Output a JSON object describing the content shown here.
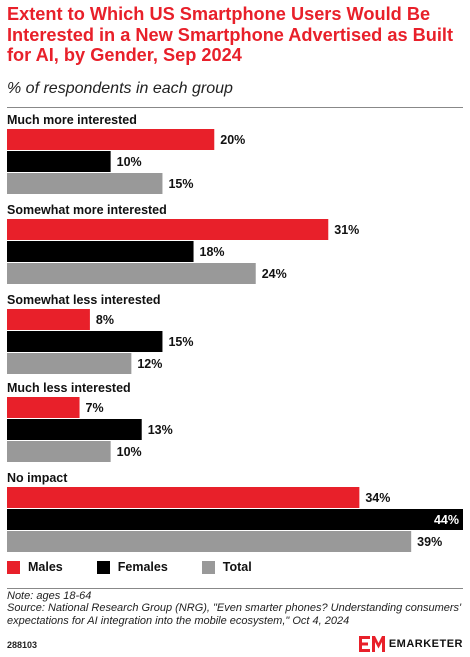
{
  "header": {
    "title": "Extent to Which US Smartphone Users Would Be Interested in a New Smartphone Advertised as Built for AI, by Gender, Sep 2024",
    "subtitle": "% of respondents in each group"
  },
  "colors": {
    "males": "#e8202a",
    "females": "#000000",
    "total": "#999999"
  },
  "chart_data": {
    "type": "bar",
    "orientation": "horizontal",
    "categories": [
      "Much more interested",
      "Somewhat more interested",
      "Somewhat less interested",
      "Much less interested",
      "No impact"
    ],
    "series": [
      {
        "name": "Males",
        "values": [
          20,
          31,
          8,
          7,
          34
        ],
        "color": "#e8202a"
      },
      {
        "name": "Females",
        "values": [
          10,
          18,
          15,
          13,
          44
        ],
        "color": "#000000"
      },
      {
        "name": "Total",
        "values": [
          15,
          24,
          12,
          10,
          39
        ],
        "color": "#999999"
      }
    ],
    "value_suffix": "%",
    "xlim": [
      0,
      44
    ],
    "legend": "bottom-left",
    "grid": false
  },
  "legend": [
    {
      "label": "Males",
      "color": "#e8202a"
    },
    {
      "label": "Females",
      "color": "#000000"
    },
    {
      "label": "Total",
      "color": "#999999"
    }
  ],
  "footer": {
    "note": "Note: ages 18-64",
    "source": "Source: National Research Group (NRG), \"Even smarter phones? Understanding consumers' expectations for AI integration into the mobile ecosystem,\" Oct 4, 2024",
    "chart_id": "288103",
    "brand": "EMARKETER"
  }
}
